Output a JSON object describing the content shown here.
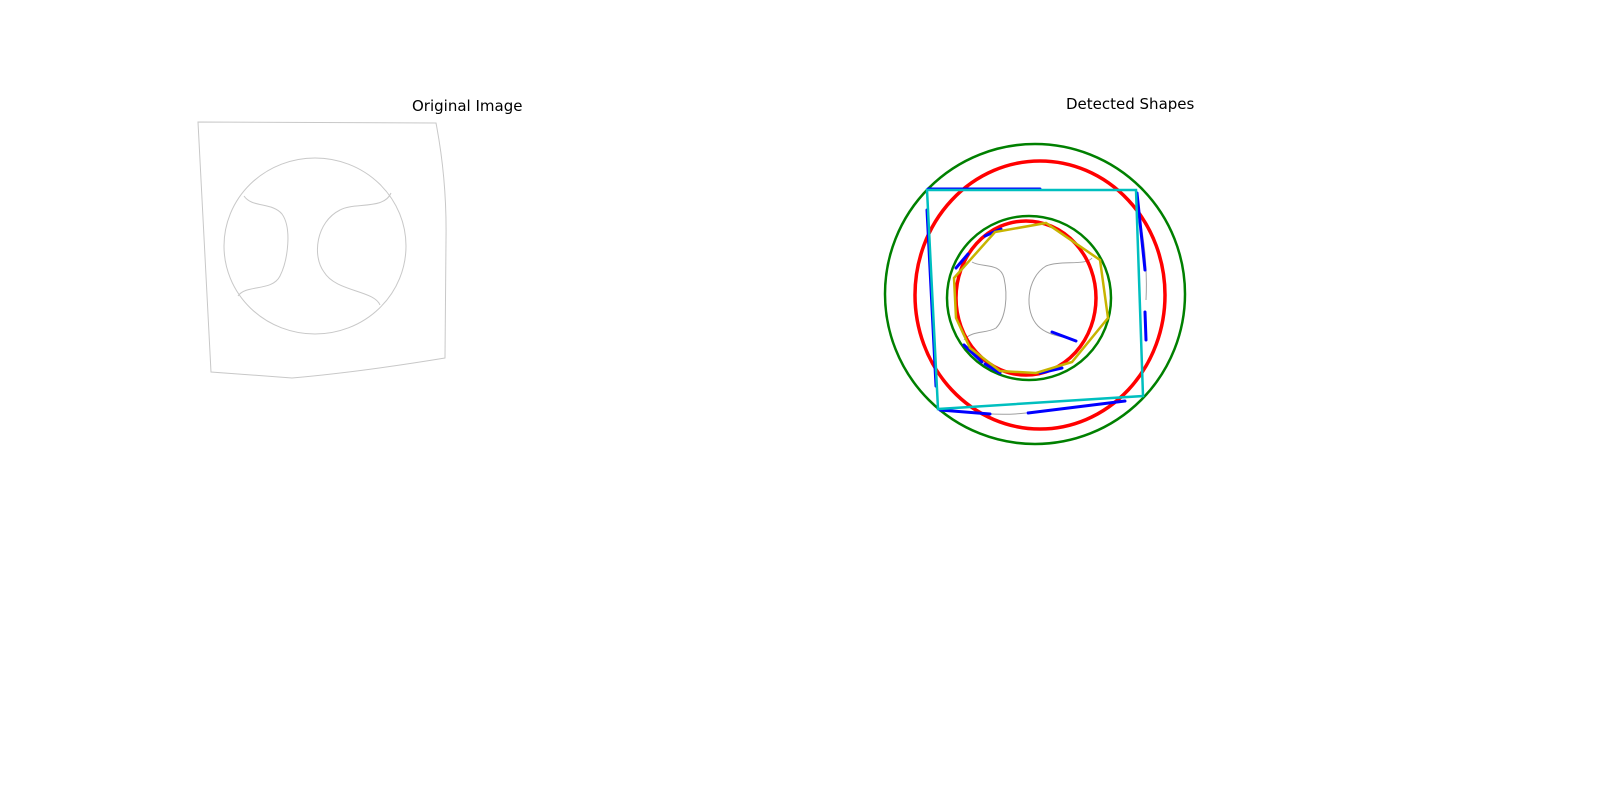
{
  "panels": {
    "left": {
      "title": "Original Image"
    },
    "right": {
      "title": "Detected Shapes"
    }
  },
  "colors": {
    "original_outline": "#c8c8c8",
    "right_outline": "#a0a0a0",
    "circle_red": "#ff0000",
    "circle_green": "#008000",
    "line_segment_blue": "#0000ff",
    "polygon_yellow": "#c8b400",
    "rectangle_cyan": "#00bfbf"
  },
  "detected": {
    "circles_red_count": 2,
    "circles_green_count": 2,
    "rectangles_count": 1,
    "polygons_count": 1,
    "line_segments_count": 12
  }
}
